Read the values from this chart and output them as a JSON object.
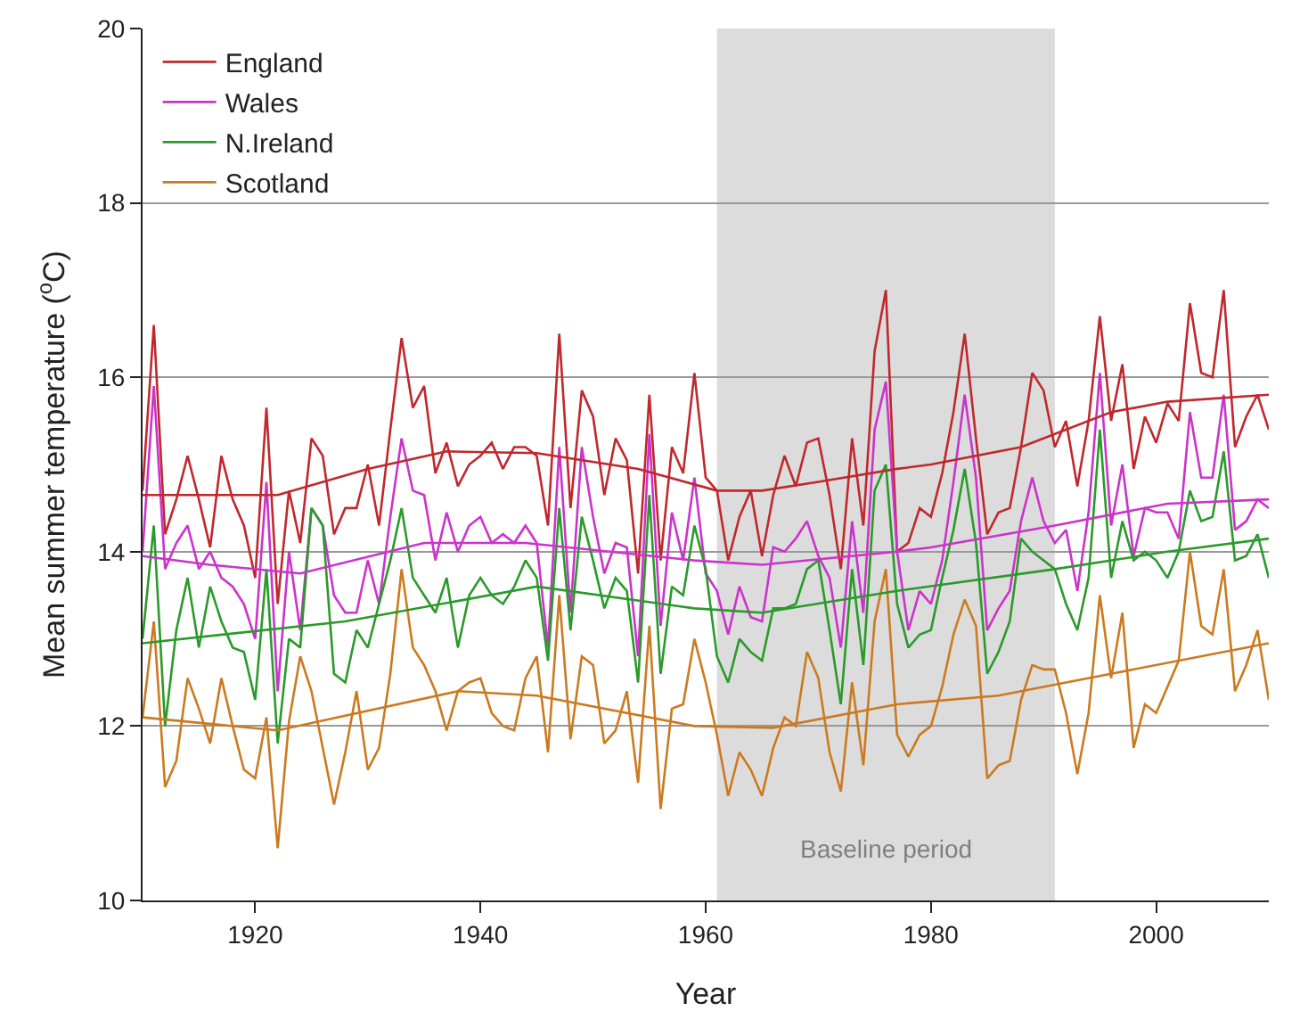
{
  "chart_data": {
    "type": "line",
    "xlabel": "Year",
    "ylabel": "Mean summer temperature ($^{o}$C)",
    "x": [
      1910,
      1911,
      1912,
      1913,
      1914,
      1915,
      1916,
      1917,
      1918,
      1919,
      1920,
      1921,
      1922,
      1923,
      1924,
      1925,
      1926,
      1927,
      1928,
      1929,
      1930,
      1931,
      1932,
      1933,
      1934,
      1935,
      1936,
      1937,
      1938,
      1939,
      1940,
      1941,
      1942,
      1943,
      1944,
      1945,
      1946,
      1947,
      1948,
      1949,
      1950,
      1951,
      1952,
      1953,
      1954,
      1955,
      1956,
      1957,
      1958,
      1959,
      1960,
      1961,
      1962,
      1963,
      1964,
      1965,
      1966,
      1967,
      1968,
      1969,
      1970,
      1971,
      1972,
      1973,
      1974,
      1975,
      1976,
      1977,
      1978,
      1979,
      1980,
      1981,
      1982,
      1983,
      1984,
      1985,
      1986,
      1987,
      1988,
      1989,
      1990,
      1991,
      1992,
      1993,
      1994,
      1995,
      1996,
      1997,
      1998,
      1999,
      2000,
      2001,
      2002,
      2003,
      2004,
      2005,
      2006,
      2007,
      2008,
      2009,
      2010
    ],
    "series": [
      {
        "name": "England",
        "color": "#c0282d",
        "values": [
          14.7,
          16.6,
          14.2,
          14.6,
          15.1,
          14.6,
          14.05,
          15.1,
          14.6,
          14.3,
          13.7,
          15.65,
          13.4,
          14.7,
          14.1,
          15.3,
          15.1,
          14.2,
          14.5,
          14.5,
          15.0,
          14.3,
          15.4,
          16.45,
          15.65,
          15.9,
          14.9,
          15.25,
          14.75,
          15.0,
          15.1,
          15.25,
          14.95,
          15.2,
          15.2,
          15.1,
          14.3,
          16.5,
          14.5,
          15.85,
          15.55,
          14.65,
          15.3,
          15.05,
          13.75,
          15.8,
          13.9,
          15.2,
          14.9,
          16.05,
          14.85,
          14.7,
          13.9,
          14.4,
          14.7,
          13.95,
          14.65,
          15.1,
          14.75,
          15.25,
          15.3,
          14.65,
          13.8,
          15.3,
          14.3,
          16.3,
          17.0,
          14.0,
          14.1,
          14.5,
          14.4,
          14.9,
          15.6,
          16.5,
          15.3,
          14.2,
          14.45,
          14.5,
          15.2,
          16.05,
          15.85,
          15.2,
          15.5,
          14.75,
          15.5,
          16.7,
          15.5,
          16.15,
          14.95,
          15.55,
          15.25,
          15.7,
          15.5,
          16.85,
          16.05,
          16.0,
          17.0,
          15.2,
          15.55,
          15.8,
          15.4
        ]
      },
      {
        "name": "Wales",
        "color": "#cc33cc",
        "values": [
          14.0,
          15.9,
          13.8,
          14.1,
          14.3,
          13.8,
          14.0,
          13.7,
          13.6,
          13.4,
          13.0,
          14.8,
          12.4,
          14.0,
          13.1,
          14.5,
          14.3,
          13.5,
          13.3,
          13.3,
          13.9,
          13.4,
          14.4,
          15.3,
          14.7,
          14.65,
          13.9,
          14.45,
          14.0,
          14.3,
          14.4,
          14.1,
          14.2,
          14.1,
          14.3,
          14.1,
          12.9,
          15.2,
          13.3,
          15.2,
          14.4,
          13.75,
          14.1,
          14.05,
          12.8,
          15.35,
          13.15,
          14.45,
          13.9,
          14.85,
          13.75,
          13.55,
          13.05,
          13.6,
          13.25,
          13.2,
          14.05,
          14.0,
          14.15,
          14.35,
          13.95,
          13.7,
          12.9,
          14.35,
          13.3,
          15.4,
          15.95,
          14.0,
          13.1,
          13.55,
          13.4,
          13.9,
          14.8,
          15.8,
          14.85,
          13.1,
          13.35,
          13.55,
          14.35,
          14.85,
          14.35,
          14.1,
          14.25,
          13.55,
          14.45,
          16.05,
          14.3,
          15.0,
          13.95,
          14.5,
          14.45,
          14.45,
          14.15,
          15.6,
          14.85,
          14.85,
          15.8,
          14.25,
          14.35,
          14.6,
          14.5
        ]
      },
      {
        "name": "N.Ireland",
        "color": "#2a9a2a",
        "values": [
          13.0,
          14.3,
          12.0,
          13.1,
          13.7,
          12.9,
          13.6,
          13.2,
          12.9,
          12.85,
          12.3,
          13.8,
          11.8,
          13.0,
          12.9,
          14.5,
          14.3,
          12.6,
          12.5,
          13.1,
          12.9,
          13.4,
          13.9,
          14.5,
          13.7,
          13.5,
          13.3,
          13.7,
          12.9,
          13.5,
          13.7,
          13.5,
          13.4,
          13.6,
          13.9,
          13.7,
          12.75,
          14.5,
          13.1,
          14.4,
          13.9,
          13.35,
          13.7,
          13.55,
          12.5,
          14.65,
          12.6,
          13.6,
          13.5,
          14.3,
          13.8,
          12.8,
          12.5,
          13.0,
          12.85,
          12.75,
          13.35,
          13.35,
          13.4,
          13.8,
          13.9,
          13.1,
          12.25,
          13.8,
          12.7,
          14.7,
          15.0,
          13.4,
          12.9,
          13.05,
          13.1,
          13.7,
          14.25,
          14.95,
          14.1,
          12.6,
          12.85,
          13.2,
          14.15,
          14.0,
          13.9,
          13.8,
          13.4,
          13.1,
          13.7,
          15.4,
          13.7,
          14.35,
          13.9,
          14.0,
          13.9,
          13.7,
          14.0,
          14.7,
          14.35,
          14.4,
          15.15,
          13.9,
          13.95,
          14.2,
          13.7
        ]
      },
      {
        "name": "Scotland",
        "color": "#cc7a1f",
        "values": [
          12.1,
          13.2,
          11.3,
          11.6,
          12.55,
          12.2,
          11.8,
          12.55,
          12.0,
          11.5,
          11.4,
          12.1,
          10.6,
          12.05,
          12.8,
          12.4,
          11.75,
          11.1,
          11.7,
          12.4,
          11.5,
          11.75,
          12.6,
          13.8,
          12.9,
          12.7,
          12.4,
          11.95,
          12.4,
          12.5,
          12.55,
          12.15,
          12.0,
          11.95,
          12.55,
          12.8,
          11.7,
          13.5,
          11.85,
          12.8,
          12.7,
          11.8,
          11.95,
          12.4,
          11.35,
          13.15,
          11.05,
          12.2,
          12.25,
          13.0,
          12.5,
          11.9,
          11.2,
          11.7,
          11.5,
          11.2,
          11.75,
          12.1,
          12.0,
          12.85,
          12.55,
          11.7,
          11.25,
          12.5,
          11.55,
          13.2,
          13.8,
          11.9,
          11.65,
          11.9,
          12.0,
          12.45,
          13.05,
          13.45,
          13.15,
          11.4,
          11.55,
          11.6,
          12.3,
          12.7,
          12.65,
          12.65,
          12.15,
          11.45,
          12.15,
          13.5,
          12.55,
          13.3,
          11.75,
          12.25,
          12.15,
          12.45,
          12.75,
          14.0,
          13.15,
          13.05,
          13.8,
          12.4,
          12.7,
          13.1,
          12.3
        ]
      },
      {
        "type": "line",
        "color": "#c0282d",
        "x": [
          1910,
          1915,
          1922,
          1930,
          1937,
          1945,
          1954,
          1961,
          1965,
          1970,
          1977,
          1980,
          1988,
          1996,
          2001,
          2010
        ],
        "values": [
          14.65,
          14.65,
          14.65,
          14.95,
          15.15,
          15.13,
          14.95,
          14.7,
          14.7,
          14.8,
          14.95,
          15.0,
          15.2,
          15.6,
          15.72,
          15.8
        ]
      },
      {
        "type": "line",
        "color": "#cc33cc",
        "x": [
          1910,
          1916,
          1924,
          1935,
          1944,
          1959,
          1965,
          1977,
          1980,
          1991,
          2001,
          2010
        ],
        "values": [
          13.95,
          13.85,
          13.75,
          14.1,
          14.1,
          13.9,
          13.85,
          14.0,
          14.05,
          14.3,
          14.55,
          14.6
        ]
      },
      {
        "type": "line",
        "color": "#2a9a2a",
        "x": [
          1910,
          1928,
          1945,
          1959,
          1965,
          1977,
          1991,
          2001,
          2010
        ],
        "values": [
          12.95,
          13.2,
          13.6,
          13.35,
          13.3,
          13.55,
          13.8,
          14.0,
          14.15
        ]
      },
      {
        "type": "line",
        "color": "#cc7a1f",
        "x": [
          1910,
          1922,
          1938,
          1945,
          1959,
          1966,
          1977,
          1986,
          1996,
          2010
        ],
        "values": [
          12.1,
          11.95,
          12.4,
          12.35,
          12.0,
          11.98,
          12.25,
          12.35,
          12.6,
          12.95
        ]
      }
    ],
    "bands": [
      {
        "axis": "x",
        "from": 1961,
        "to": 1991,
        "label": "Baseline period",
        "color": "#dcdcdc"
      }
    ],
    "xlim": [
      1910,
      2010
    ],
    "xticks": [
      1920,
      1940,
      1960,
      1980,
      2000
    ],
    "ylim": [
      10,
      20
    ],
    "yticks": [
      10,
      12,
      14,
      16,
      18,
      20
    ],
    "grid": "y",
    "legend": "top left"
  }
}
